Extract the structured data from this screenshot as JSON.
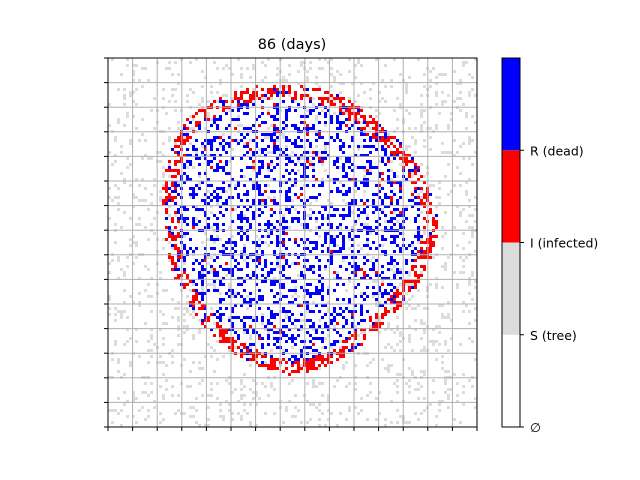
{
  "chart_data": {
    "type": "heatmap",
    "title": "86 (days)",
    "xlabel": "",
    "ylabel": "",
    "grid": true,
    "grid_divisions": 15,
    "colorbar": {
      "position": "right",
      "categories": [
        {
          "code": 0,
          "label": "∅",
          "color": "#ffffff"
        },
        {
          "code": 1,
          "label": "S (tree)",
          "color": "#dcdcdc"
        },
        {
          "code": 2,
          "label": "I (infected)",
          "color": "#ff0000"
        },
        {
          "code": 3,
          "label": "R (dead)",
          "color": "#0000ff"
        }
      ]
    },
    "state_pattern": "Roughly circular burned region: blue dead (R) cells scattered over the interior, red infected (I) front along the perimeter, sparse grey trees (S) elsewhere on a white empty background"
  }
}
